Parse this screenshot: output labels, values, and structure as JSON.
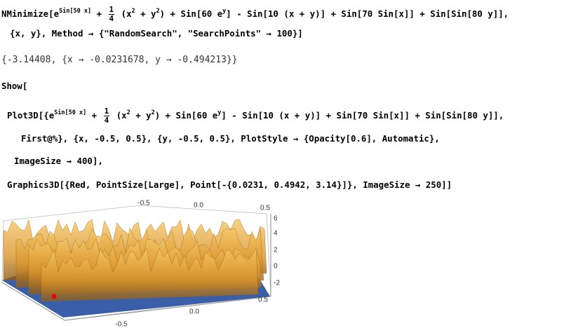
{
  "lines": [
    [
      "NMinimize[",
      "e",
      {
        "sup": "Sin[50 x]"
      },
      " + ",
      {
        "num": "1",
        "den": "4"
      },
      " (x",
      {
        "sup": "2"
      },
      " + y",
      {
        "sup": "2"
      },
      ") + Sin[60 e",
      {
        "sup": "y"
      },
      "] - Sin[10 (x + y)] + Sin[70 Sin[x]] + Sin[Sin[80 y]],"
    ],
    [
      "{x, y}, Method → {\"RandomSearch\", \"SearchPoints\" → 100}]"
    ],
    [
      "{-3.14408, {x → -0.0231678, y → -0.494213}}"
    ],
    [
      "Show["
    ],
    [
      "Plot3D[{",
      "e",
      {
        "sup": "Sin[50 x]"
      },
      " + ",
      {
        "num": "1",
        "den": "4"
      },
      " (x",
      {
        "sup": "2"
      },
      " + y",
      {
        "sup": "2"
      },
      ") + Sin[60 e",
      {
        "sup": "y"
      },
      "] - Sin[10 (x + y)] + Sin[70 Sin[x]] + Sin[Sin[80 y]],"
    ],
    [
      "First@%}, {x, -0.5, 0.5}, {y, -0.5, 0.5}, PlotStyle → {Opacity[0.6], Automatic},"
    ],
    [
      "ImageSize → 400],"
    ],
    [
      "Graphics3D[{Red, PointSize[Large], Point[-{0.0231, 0.4942, 3.14}]}, ImageSize → 250]]"
    ]
  ],
  "plot": {
    "top_ticks": [
      "-0.5",
      "0.0",
      "0.5"
    ],
    "right_ticks": [
      "6",
      "4",
      "2",
      "0",
      "-2"
    ],
    "bottom_ticks": [
      "0.5",
      "0.0",
      "-0.5"
    ]
  }
}
